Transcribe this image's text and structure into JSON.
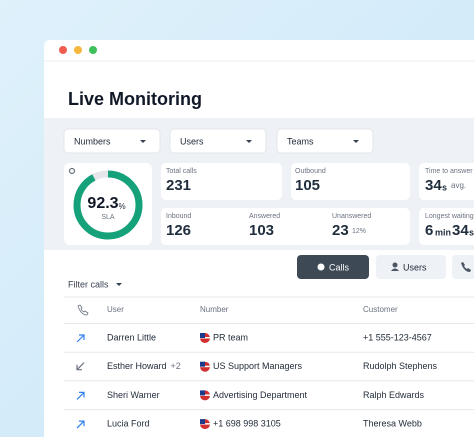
{
  "header": {
    "title": "Live Monitoring"
  },
  "filters": [
    "Numbers",
    "Users",
    "Teams"
  ],
  "sla": {
    "value": 92.3,
    "unit": "%",
    "label": "SLA"
  },
  "stats": {
    "total_calls": {
      "label": "Total calls",
      "value": "231"
    },
    "outbound": {
      "label": "Outbound",
      "value": "105"
    },
    "time_to_answer": {
      "label": "Time to answer",
      "value": "34",
      "unit": "s",
      "suffix": "avg."
    },
    "inbound": {
      "label": "Inbound",
      "value": "126"
    },
    "answered": {
      "label": "Answered",
      "value": "103"
    },
    "unanswered": {
      "label": "Unanswered",
      "value": "23",
      "percent": "12%"
    },
    "longest_waiting": {
      "label": "Longest waiting",
      "value": "6",
      "unit": "min",
      "value2": "34",
      "unit2": "s"
    }
  },
  "tabs": [
    "Calls",
    "Users"
  ],
  "filter_calls": "Filter calls",
  "table": {
    "columns": [
      "User",
      "Number",
      "Customer"
    ],
    "rows": [
      {
        "user": "Darren Little",
        "number": "PR team",
        "customer": "+1 555-123-4567"
      },
      {
        "user": "Esther Howard",
        "extra": "+2",
        "number": "US Support Managers",
        "customer": "Rudolph Stephens"
      },
      {
        "user": "Sheri Warner",
        "number": "Advertising Department",
        "customer": "Ralph Edwards"
      },
      {
        "user": "Lucia Ford",
        "number": "+1 698 998 3105",
        "customer": "Theresa Webb"
      }
    ]
  }
}
